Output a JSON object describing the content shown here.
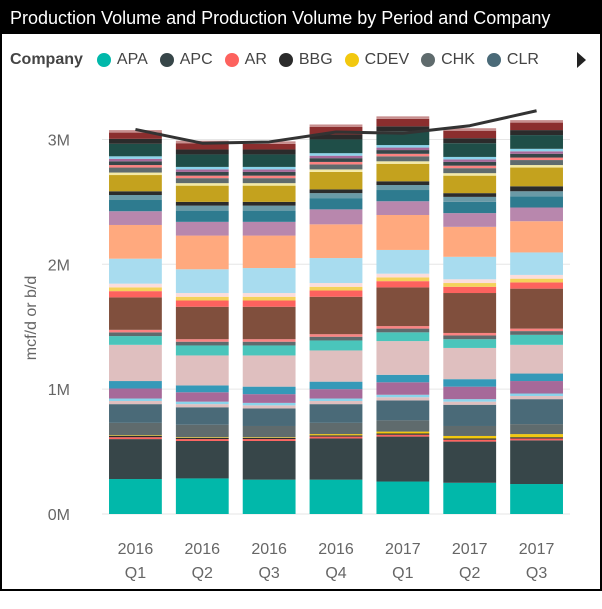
{
  "title": "Production Volume and Production Volume by Period and Company",
  "legend": {
    "title": "Company",
    "items": [
      {
        "label": "APA",
        "color": "#01B8AA"
      },
      {
        "label": "APC",
        "color": "#374649"
      },
      {
        "label": "AR",
        "color": "#FD625E"
      },
      {
        "label": "BBG",
        "color": "#2B2B2B"
      },
      {
        "label": "CDEV",
        "color": "#F2C80F"
      },
      {
        "label": "CHK",
        "color": "#5F6B6D"
      },
      {
        "label": "CLR",
        "color": "#4A6A78"
      }
    ]
  },
  "chart_data": {
    "type": "bar",
    "stacked": true,
    "categories": [
      "2016 Q1",
      "2016 Q2",
      "2016 Q3",
      "2016 Q4",
      "2017 Q1",
      "2017 Q2",
      "2017 Q3"
    ],
    "category_lines": [
      [
        "2016",
        "Q1"
      ],
      [
        "2016",
        "Q2"
      ],
      [
        "2016",
        "Q3"
      ],
      [
        "2016",
        "Q4"
      ],
      [
        "2017",
        "Q1"
      ],
      [
        "2017",
        "Q2"
      ],
      [
        "2017",
        "Q3"
      ]
    ],
    "ylabel": "mcf/d or b/d",
    "ylim": [
      0,
      3300000
    ],
    "yticks": [
      0,
      1000000,
      2000000,
      3000000
    ],
    "ytick_labels": [
      "0M",
      "1M",
      "2M",
      "3M"
    ],
    "grid": true,
    "series": [
      {
        "name": "APA",
        "color": "#01B8AA",
        "values": [
          280000,
          285000,
          275000,
          275000,
          260000,
          250000,
          240000
        ]
      },
      {
        "name": "APC",
        "color": "#374649",
        "values": [
          320000,
          300000,
          310000,
          330000,
          360000,
          330000,
          350000
        ]
      },
      {
        "name": "AR",
        "color": "#FD625E",
        "values": [
          15000,
          15000,
          15000,
          15000,
          15000,
          15000,
          15000
        ]
      },
      {
        "name": "BBG",
        "color": "#2B2B2B",
        "values": [
          10000,
          10000,
          10000,
          10000,
          10000,
          10000,
          10000
        ]
      },
      {
        "name": "CDEV",
        "color": "#F2C80F",
        "values": [
          5000,
          5000,
          5000,
          10000,
          15000,
          20000,
          25000
        ]
      },
      {
        "name": "CHK",
        "color": "#5F6B6D",
        "values": [
          100000,
          100000,
          90000,
          90000,
          90000,
          80000,
          80000
        ]
      },
      {
        "name": "CLR",
        "color": "#4A6A78",
        "values": [
          150000,
          140000,
          140000,
          150000,
          160000,
          170000,
          200000
        ]
      },
      {
        "color": "#DFBFBF",
        "values": [
          25000,
          25000,
          25000,
          25000,
          25000,
          25000,
          25000
        ]
      },
      {
        "color": "#8AD4EB",
        "values": [
          20000,
          20000,
          20000,
          20000,
          20000,
          20000,
          20000
        ]
      },
      {
        "color": "#A66999",
        "values": [
          80000,
          75000,
          70000,
          75000,
          100000,
          100000,
          100000
        ]
      },
      {
        "color": "#3599B8",
        "values": [
          60000,
          55000,
          60000,
          60000,
          60000,
          60000,
          60000
        ]
      },
      {
        "color": "#DFBFBF",
        "values": [
          290000,
          240000,
          250000,
          250000,
          270000,
          250000,
          230000
        ]
      },
      {
        "color": "#4AC5BB",
        "values": [
          70000,
          80000,
          80000,
          80000,
          70000,
          70000,
          80000
        ]
      },
      {
        "color": "#5F6B6D",
        "values": [
          30000,
          30000,
          30000,
          30000,
          30000,
          30000,
          30000
        ]
      },
      {
        "color": "#FB8281",
        "values": [
          20000,
          20000,
          20000,
          20000,
          20000,
          20000,
          20000
        ]
      },
      {
        "color": "#804F3D",
        "values": [
          260000,
          260000,
          260000,
          300000,
          310000,
          320000,
          320000
        ]
      },
      {
        "color": "#FD625E",
        "values": [
          50000,
          50000,
          50000,
          50000,
          50000,
          50000,
          50000
        ]
      },
      {
        "color": "#F4D25A",
        "values": [
          30000,
          30000,
          30000,
          30000,
          30000,
          30000,
          30000
        ]
      },
      {
        "color": "#FCDDDB",
        "values": [
          30000,
          30000,
          30000,
          30000,
          30000,
          30000,
          30000
        ]
      },
      {
        "color": "#A8DCEF",
        "values": [
          200000,
          190000,
          200000,
          200000,
          190000,
          180000,
          180000
        ]
      },
      {
        "color": "#FFA97E",
        "values": [
          270000,
          270000,
          260000,
          270000,
          280000,
          240000,
          250000
        ]
      },
      {
        "color": "#B887AD",
        "values": [
          110000,
          110000,
          110000,
          120000,
          110000,
          110000,
          110000
        ]
      },
      {
        "color": "#2E7B8F",
        "values": [
          90000,
          90000,
          90000,
          90000,
          90000,
          90000,
          90000
        ]
      },
      {
        "color": "#6A9AA6",
        "values": [
          40000,
          40000,
          40000,
          40000,
          40000,
          40000,
          40000
        ]
      },
      {
        "color": "#2B2B2B",
        "values": [
          30000,
          30000,
          30000,
          30000,
          30000,
          30000,
          40000
        ]
      },
      {
        "color": "#C4A21E",
        "values": [
          130000,
          130000,
          130000,
          140000,
          140000,
          140000,
          150000
        ]
      },
      {
        "color": "#F3E9A6",
        "values": [
          20000,
          20000,
          20000,
          20000,
          20000,
          20000,
          20000
        ]
      },
      {
        "color": "#5F6B6D",
        "values": [
          40000,
          40000,
          40000,
          40000,
          40000,
          40000,
          40000
        ]
      },
      {
        "color": "#FB8281",
        "values": [
          20000,
          20000,
          20000,
          20000,
          20000,
          20000,
          20000
        ]
      },
      {
        "color": "#374649",
        "values": [
          30000,
          30000,
          30000,
          30000,
          30000,
          30000,
          30000
        ]
      },
      {
        "color": "#A66999",
        "values": [
          20000,
          20000,
          20000,
          20000,
          20000,
          20000,
          20000
        ]
      },
      {
        "color": "#8AD4EB",
        "values": [
          20000,
          20000,
          20000,
          20000,
          20000,
          20000,
          20000
        ]
      },
      {
        "color": "#1F4E48",
        "values": [
          100000,
          100000,
          100000,
          110000,
          110000,
          110000,
          110000
        ]
      },
      {
        "color": "#2B2B2B",
        "values": [
          40000,
          40000,
          40000,
          40000,
          40000,
          40000,
          40000
        ]
      },
      {
        "color": "#8B2E2E",
        "values": [
          50000,
          50000,
          45000,
          60000,
          60000,
          60000,
          60000
        ]
      },
      {
        "color": "#C78E8E",
        "values": [
          20000,
          20000,
          20000,
          20000,
          20000,
          20000,
          20000
        ]
      }
    ],
    "line": {
      "color": "#333333",
      "values": [
        3080000,
        2970000,
        2980000,
        3060000,
        3050000,
        3110000,
        3230000
      ]
    }
  }
}
